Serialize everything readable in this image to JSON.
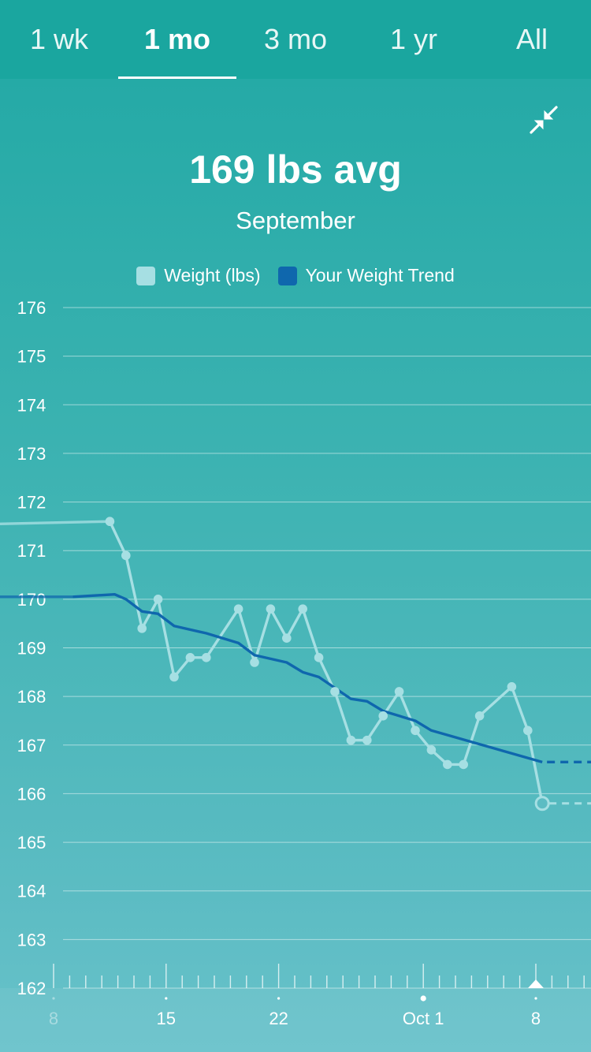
{
  "tabs": [
    {
      "label": "1 wk"
    },
    {
      "label": "1 mo",
      "active": true
    },
    {
      "label": "3 mo"
    },
    {
      "label": "1 yr"
    },
    {
      "label": "All"
    }
  ],
  "collapse_icon": "collapse-arrows-icon",
  "headline": "169 lbs avg",
  "subtitle": "September",
  "legend": [
    {
      "label": "Weight (lbs)",
      "color": "#a6dfe3"
    },
    {
      "label": "Your Weight Trend",
      "color": "#0f67ad"
    }
  ],
  "chart_data": {
    "type": "line",
    "title": "169 lbs avg",
    "subtitle": "September",
    "ylim": [
      162,
      176
    ],
    "y_ticks": [
      176,
      175,
      174,
      173,
      172,
      171,
      170,
      169,
      168,
      167,
      166,
      165,
      164,
      163,
      162
    ],
    "x_tick_labels": [
      {
        "label": "8",
        "day": 0,
        "faded": true
      },
      {
        "label": "15",
        "day": 7
      },
      {
        "label": "22",
        "day": 14
      },
      {
        "label": "Oct 1",
        "day": 23
      },
      {
        "label": "8",
        "day": 30
      }
    ],
    "grid": true,
    "legend_position": "top-center",
    "series": [
      {
        "name": "Weight (lbs)",
        "color": "#a6dfe3",
        "points": [
          [
            3.5,
            171.6
          ],
          [
            4.5,
            170.9
          ],
          [
            5.5,
            169.4
          ],
          [
            6.5,
            170.0
          ],
          [
            7.5,
            168.4
          ],
          [
            8.5,
            168.8
          ],
          [
            9.5,
            168.8
          ],
          [
            11.5,
            169.8
          ],
          [
            12.5,
            168.7
          ],
          [
            13.5,
            169.8
          ],
          [
            14.5,
            169.2
          ],
          [
            15.5,
            169.8
          ],
          [
            16.5,
            168.8
          ],
          [
            17.5,
            168.1
          ],
          [
            18.5,
            167.1
          ],
          [
            19.5,
            167.1
          ],
          [
            20.5,
            167.6
          ],
          [
            21.5,
            168.1
          ],
          [
            22.5,
            167.3
          ],
          [
            23.5,
            166.9
          ],
          [
            24.5,
            166.6
          ],
          [
            25.5,
            166.6
          ],
          [
            26.5,
            167.6
          ],
          [
            28.5,
            168.2
          ],
          [
            29.5,
            167.3
          ],
          [
            30.4,
            165.8
          ]
        ],
        "lead_in_value": 171.55,
        "projection_value": 165.8
      },
      {
        "name": "Your Weight Trend",
        "color": "#0f67ad",
        "points": [
          [
            1.2,
            170.05
          ],
          [
            3.8,
            170.1
          ],
          [
            4.5,
            170.0
          ],
          [
            5.5,
            169.75
          ],
          [
            6.5,
            169.7
          ],
          [
            7.5,
            169.45
          ],
          [
            9.5,
            169.3
          ],
          [
            11.5,
            169.1
          ],
          [
            12.5,
            168.85
          ],
          [
            14.5,
            168.7
          ],
          [
            15.5,
            168.5
          ],
          [
            16.5,
            168.4
          ],
          [
            18.5,
            167.95
          ],
          [
            19.5,
            167.9
          ],
          [
            20.5,
            167.7
          ],
          [
            22.5,
            167.5
          ],
          [
            23.5,
            167.3
          ],
          [
            30.4,
            166.65
          ]
        ],
        "lead_in_value": 170.05,
        "projection_value": 166.65
      }
    ]
  }
}
